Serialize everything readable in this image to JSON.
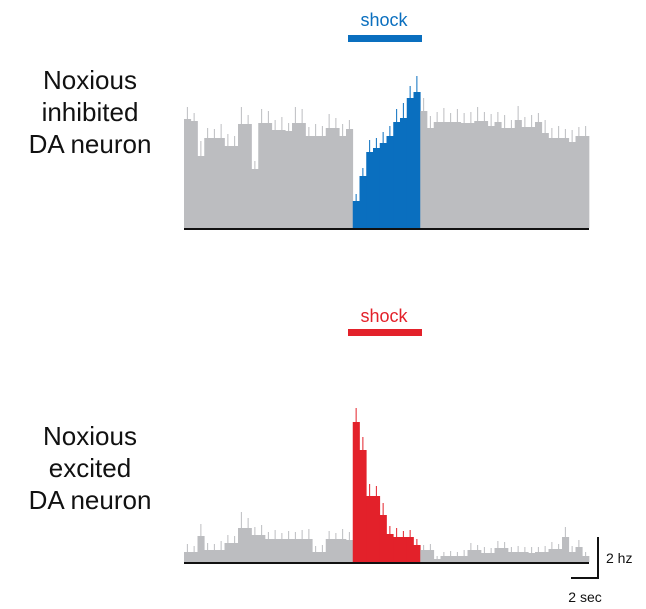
{
  "colors": {
    "baseline_bars": "#bcbdc0",
    "inhibited_accent": "#0a6fbf",
    "excited_accent": "#e3212a",
    "axis": "#111111"
  },
  "chart_data": [
    {
      "type": "bar",
      "subtype": "peri-stimulus time histogram",
      "label_lines": [
        "Noxious",
        "inhibited",
        "DA neuron"
      ],
      "stimulus_label": "shock",
      "stimulus_window_bins": [
        25,
        35
      ],
      "values": [
        10.9,
        10.7,
        7.2,
        9.0,
        9.0,
        9.0,
        8.2,
        8.2,
        10.4,
        10.4,
        5.9,
        10.5,
        10.5,
        9.8,
        9.8,
        9.7,
        10.5,
        10.5,
        9.2,
        9.2,
        9.2,
        10.0,
        10.0,
        9.2,
        9.9,
        2.7,
        5.2,
        7.6,
        8.0,
        8.5,
        9.2,
        10.6,
        11.0,
        13.0,
        13.6,
        11.7,
        10.0,
        10.6,
        10.6,
        10.6,
        10.6,
        10.5,
        10.5,
        10.7,
        10.7,
        10.2,
        10.6,
        10.0,
        10.0,
        10.8,
        10.1,
        10.1,
        10.6,
        9.5,
        9.0,
        9.0,
        9.0,
        8.6,
        9.2,
        9.2
      ],
      "errors": [
        1.2,
        0.8,
        1.5,
        1.0,
        0.9,
        1.4,
        1.2,
        1.0,
        1.7,
        0.9,
        0.8,
        1.4,
        1.2,
        1.0,
        1.3,
        0.8,
        1.6,
        1.4,
        0.9,
        1.2,
        1.0,
        1.4,
        1.0,
        1.2,
        0.9,
        0.7,
        0.8,
        1.2,
        1.0,
        1.1,
        1.0,
        1.3,
        1.5,
        1.2,
        1.6,
        1.3,
        1.2,
        1.0,
        1.4,
        0.9,
        1.3,
        1.0,
        1.1,
        1.4,
        0.9,
        1.2,
        1.0,
        1.3,
        0.8,
        1.4,
        1.0,
        1.2,
        0.9,
        1.3,
        1.0,
        1.2,
        0.9,
        1.2,
        0.9,
        1.0
      ],
      "y_units": "hz",
      "ylim": [
        0,
        16
      ]
    },
    {
      "type": "bar",
      "subtype": "peri-stimulus time histogram",
      "label_lines": [
        "Noxious",
        "excited",
        "DA neuron"
      ],
      "stimulus_label": "shock",
      "stimulus_window_bins": [
        25,
        35
      ],
      "values": [
        1.0,
        1.0,
        2.6,
        1.2,
        1.2,
        1.2,
        1.9,
        1.9,
        3.4,
        3.4,
        2.7,
        2.7,
        2.3,
        2.3,
        2.3,
        2.3,
        2.3,
        2.3,
        2.3,
        1.0,
        1.0,
        2.3,
        2.3,
        2.3,
        2.2,
        14.0,
        11.2,
        6.6,
        6.6,
        4.7,
        2.8,
        2.5,
        2.5,
        2.5,
        1.7,
        1.2,
        1.2,
        0.3,
        0.6,
        0.6,
        0.6,
        0.6,
        1.2,
        1.2,
        0.9,
        0.9,
        1.4,
        1.4,
        1.0,
        1.0,
        1.0,
        0.9,
        1.0,
        1.0,
        1.3,
        1.3,
        2.5,
        1.0,
        1.5,
        0.6
      ],
      "errors": [
        0.8,
        0.6,
        1.2,
        0.7,
        0.6,
        0.9,
        0.8,
        0.7,
        1.6,
        1.0,
        0.8,
        1.0,
        0.7,
        0.9,
        0.6,
        0.8,
        0.7,
        0.9,
        1.0,
        0.6,
        0.7,
        0.8,
        0.6,
        1.0,
        0.8,
        1.4,
        1.3,
        1.2,
        1.0,
        1.2,
        0.8,
        0.9,
        0.6,
        0.7,
        0.6,
        0.5,
        0.6,
        0.3,
        0.4,
        0.5,
        0.4,
        0.6,
        0.7,
        0.5,
        0.6,
        0.5,
        0.7,
        0.6,
        0.5,
        0.6,
        0.5,
        0.6,
        0.5,
        0.6,
        0.7,
        0.5,
        1.0,
        0.6,
        0.7,
        0.4
      ],
      "y_units": "hz",
      "ylim": [
        0,
        16
      ]
    }
  ],
  "scale_bar": {
    "y_label": "2 hz",
    "y_value_hz": 2,
    "x_label": "2 sec",
    "x_value_sec": 2
  }
}
